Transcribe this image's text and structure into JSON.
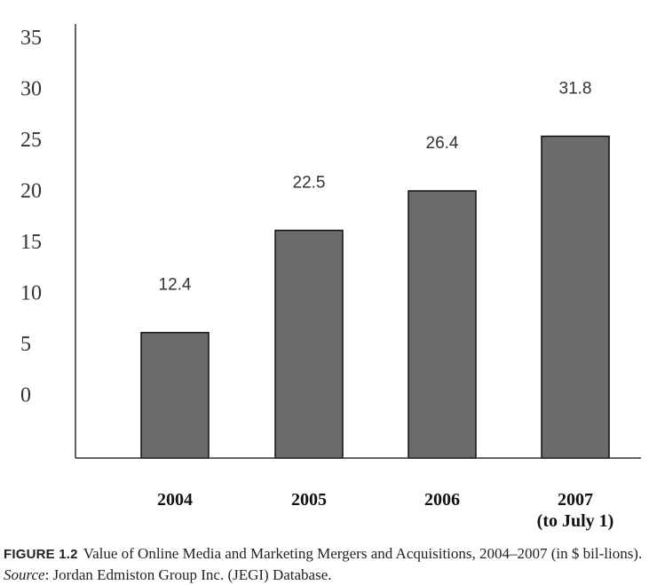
{
  "chart_data": {
    "type": "bar",
    "categories": [
      "2004",
      "2005",
      "2006",
      "2007"
    ],
    "category_sublabels": [
      "",
      "",
      "",
      "(to July 1)"
    ],
    "values": [
      12.4,
      22.5,
      26.4,
      31.8
    ],
    "data_labels": [
      "12.4",
      "22.5",
      "26.4",
      "31.8"
    ],
    "yticks": [
      "35",
      "30",
      "25",
      "20",
      "15",
      "10",
      "5",
      "0"
    ],
    "xlabel": "",
    "ylabel": "",
    "grid": false,
    "bar_color": "#6b6b6b"
  },
  "caption": {
    "figure_label": "FIGURE 1.2",
    "text_main": "Value of Online Media and Marketing Mergers and Acquisitions, 2004–2007 (in $ bil-lions).",
    "source_label": "Source",
    "source_text": ": Jordan Edmiston Group Inc. (JEGI) Database."
  }
}
